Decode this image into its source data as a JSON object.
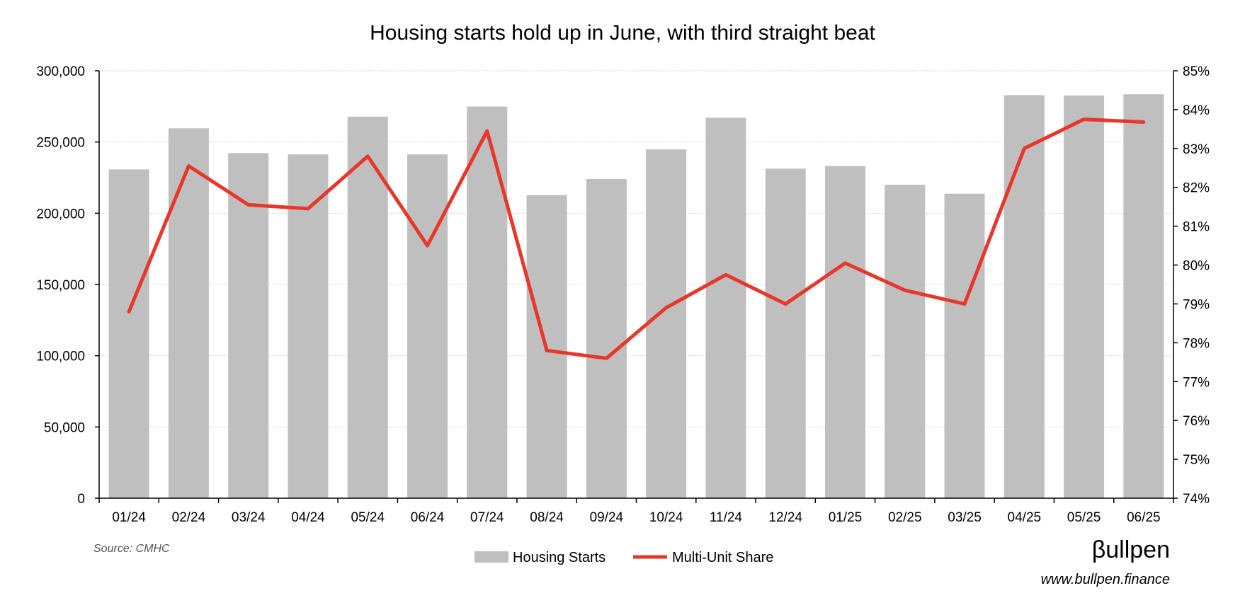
{
  "chart_data": {
    "type": "bar",
    "title": "Housing starts hold up in June, with third straight beat",
    "categories": [
      "01/24",
      "02/24",
      "03/24",
      "04/24",
      "05/24",
      "06/24",
      "07/24",
      "08/24",
      "09/24",
      "10/24",
      "11/24",
      "12/24",
      "01/25",
      "02/25",
      "03/25",
      "04/25",
      "05/25",
      "06/25"
    ],
    "series": [
      {
        "name": "Housing Starts",
        "type": "bar",
        "axis": "left",
        "color": "#bfbfbf",
        "values": [
          230800,
          259600,
          242200,
          241300,
          267800,
          241300,
          274900,
          212700,
          224000,
          244800,
          267000,
          231300,
          233100,
          220000,
          213700,
          282900,
          282600,
          283500
        ]
      },
      {
        "name": "Multi-Unit Share",
        "type": "line",
        "axis": "right",
        "color": "#e8372a",
        "values": [
          78.8,
          82.55,
          81.55,
          81.45,
          82.8,
          80.5,
          83.45,
          77.8,
          77.6,
          78.9,
          79.75,
          79.0,
          80.05,
          79.35,
          79.0,
          83.0,
          83.75,
          83.68
        ]
      }
    ],
    "ylim_left": [
      0,
      300000
    ],
    "ylim_right": [
      74,
      85
    ],
    "left_ticks": [
      "0",
      "50,000",
      "100,000",
      "150,000",
      "200,000",
      "250,000",
      "300,000"
    ],
    "left_tick_values": [
      0,
      50000,
      100000,
      150000,
      200000,
      250000,
      300000
    ],
    "right_ticks": [
      "74%",
      "75%",
      "76%",
      "77%",
      "78%",
      "79%",
      "80%",
      "81%",
      "82%",
      "83%",
      "84%",
      "85%"
    ],
    "right_tick_values": [
      74,
      75,
      76,
      77,
      78,
      79,
      80,
      81,
      82,
      83,
      84,
      85
    ],
    "grid": true,
    "legend_position": "bottom"
  },
  "source_text": "Source: CMHC",
  "brand": {
    "name": "βullpen",
    "url": "www.bullpen.finance"
  }
}
